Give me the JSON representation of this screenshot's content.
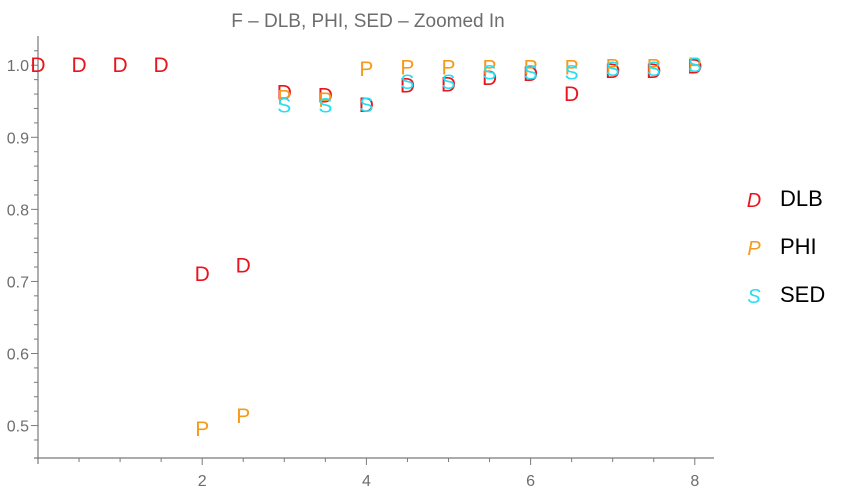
{
  "chart_data": {
    "type": "scatter",
    "title": "F – DLB, PHI, SED – Zoomed In",
    "xlabel": "",
    "ylabel": "",
    "xlim": [
      0,
      8.1
    ],
    "ylim": [
      0.455,
      1.035
    ],
    "x_ticks": [
      2,
      4,
      6,
      8
    ],
    "x_tick_labels": [
      "2",
      "4",
      "6",
      "8"
    ],
    "y_ticks": [
      0.5,
      0.6,
      0.7,
      0.8,
      0.9,
      1.0
    ],
    "y_tick_labels": [
      "0.5",
      "0.6",
      "0.7",
      "0.8",
      "0.9",
      "1.0"
    ],
    "grid": false,
    "legend_position": "right",
    "series": [
      {
        "name": "DLB",
        "marker": "D",
        "color": "#e8141e",
        "points": [
          {
            "x": 0,
            "y": 1.0
          },
          {
            "x": 0.5,
            "y": 1.0
          },
          {
            "x": 1.0,
            "y": 1.0
          },
          {
            "x": 1.5,
            "y": 1.0
          },
          {
            "x": 2.0,
            "y": 0.71
          },
          {
            "x": 2.5,
            "y": 0.722
          },
          {
            "x": 3.0,
            "y": 0.962
          },
          {
            "x": 3.5,
            "y": 0.958
          },
          {
            "x": 4.0,
            "y": 0.945
          },
          {
            "x": 4.5,
            "y": 0.972
          },
          {
            "x": 5.0,
            "y": 0.973
          },
          {
            "x": 5.5,
            "y": 0.982
          },
          {
            "x": 6.0,
            "y": 0.988
          },
          {
            "x": 6.5,
            "y": 0.96
          },
          {
            "x": 7.0,
            "y": 0.992
          },
          {
            "x": 7.5,
            "y": 0.992
          },
          {
            "x": 8.0,
            "y": 0.998
          }
        ]
      },
      {
        "name": "PHI",
        "marker": "P",
        "color": "#f59a1e",
        "points": [
          {
            "x": 2.0,
            "y": 0.495
          },
          {
            "x": 2.5,
            "y": 0.513
          },
          {
            "x": 3.0,
            "y": 0.955
          },
          {
            "x": 3.5,
            "y": 0.952
          },
          {
            "x": 4.0,
            "y": 0.995
          },
          {
            "x": 4.5,
            "y": 0.997
          },
          {
            "x": 5.0,
            "y": 0.997
          },
          {
            "x": 5.5,
            "y": 0.997
          },
          {
            "x": 6.0,
            "y": 0.997
          },
          {
            "x": 6.5,
            "y": 0.997
          },
          {
            "x": 7.0,
            "y": 0.998
          },
          {
            "x": 7.5,
            "y": 0.998
          },
          {
            "x": 8.0,
            "y": 1.0
          }
        ]
      },
      {
        "name": "SED",
        "marker": "S",
        "color": "#22e0f2",
        "points": [
          {
            "x": 3.0,
            "y": 0.944
          },
          {
            "x": 3.5,
            "y": 0.944
          },
          {
            "x": 4.0,
            "y": 0.945
          },
          {
            "x": 4.5,
            "y": 0.977
          },
          {
            "x": 5.0,
            "y": 0.977
          },
          {
            "x": 5.5,
            "y": 0.99
          },
          {
            "x": 6.0,
            "y": 0.99
          },
          {
            "x": 6.5,
            "y": 0.99
          },
          {
            "x": 7.0,
            "y": 0.995
          },
          {
            "x": 7.5,
            "y": 0.995
          },
          {
            "x": 8.0,
            "y": 1.0
          }
        ]
      }
    ]
  }
}
